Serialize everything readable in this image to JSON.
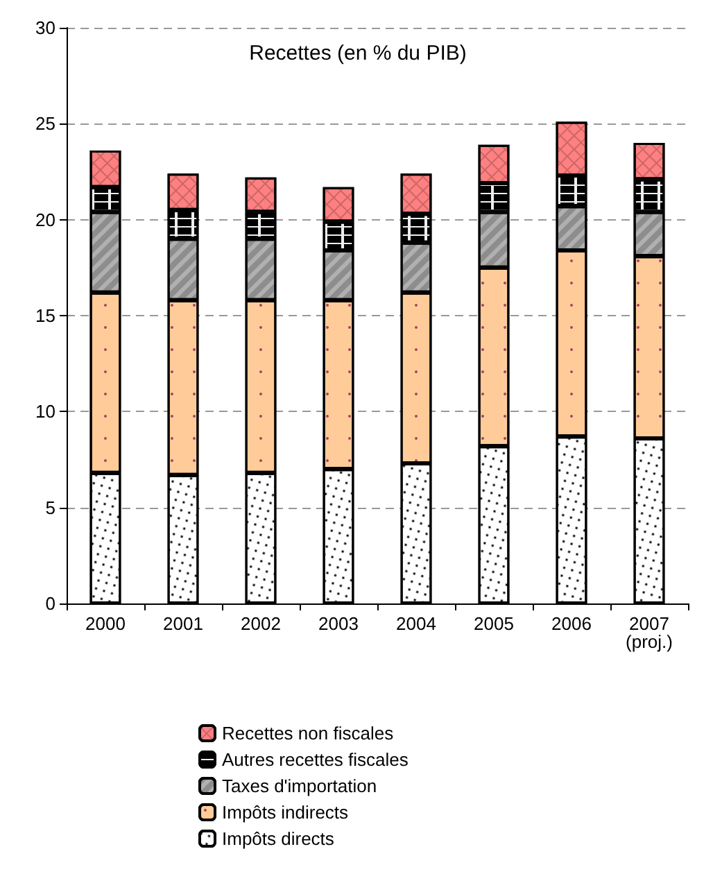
{
  "chart_data": {
    "type": "bar",
    "title": "Recettes (en % du PIB)",
    "categories": [
      "2000",
      "2001",
      "2002",
      "2003",
      "2004",
      "2005",
      "2006",
      "2007\n(proj.)"
    ],
    "stacked": true,
    "ylim": [
      0,
      30
    ],
    "yticks": [
      0,
      5,
      10,
      15,
      20,
      25,
      30
    ],
    "grid": "y",
    "legend": "bottom",
    "series": [
      {
        "name": "Impôts directs",
        "color": "#ffffff",
        "values": [
          6.8,
          6.7,
          6.8,
          7.0,
          7.3,
          8.2,
          8.7,
          8.6
        ]
      },
      {
        "name": "Impôts indirects",
        "color": "#ffcc99",
        "values": [
          9.4,
          9.1,
          9.0,
          8.8,
          8.9,
          9.3,
          9.7,
          9.5
        ]
      },
      {
        "name": "Taxes d'importation",
        "color": "#b0b0b0",
        "values": [
          4.2,
          3.2,
          3.2,
          2.6,
          2.6,
          2.9,
          2.3,
          2.3
        ]
      },
      {
        "name": "Autres recettes fiscales",
        "color": "#eeeeee",
        "values": [
          1.3,
          1.5,
          1.4,
          1.5,
          1.5,
          1.5,
          1.6,
          1.7
        ]
      },
      {
        "name": "Recettes non fiscales",
        "color": "#ff8080",
        "values": [
          1.9,
          1.9,
          1.8,
          1.8,
          2.1,
          2.0,
          2.8,
          1.9
        ]
      }
    ]
  }
}
